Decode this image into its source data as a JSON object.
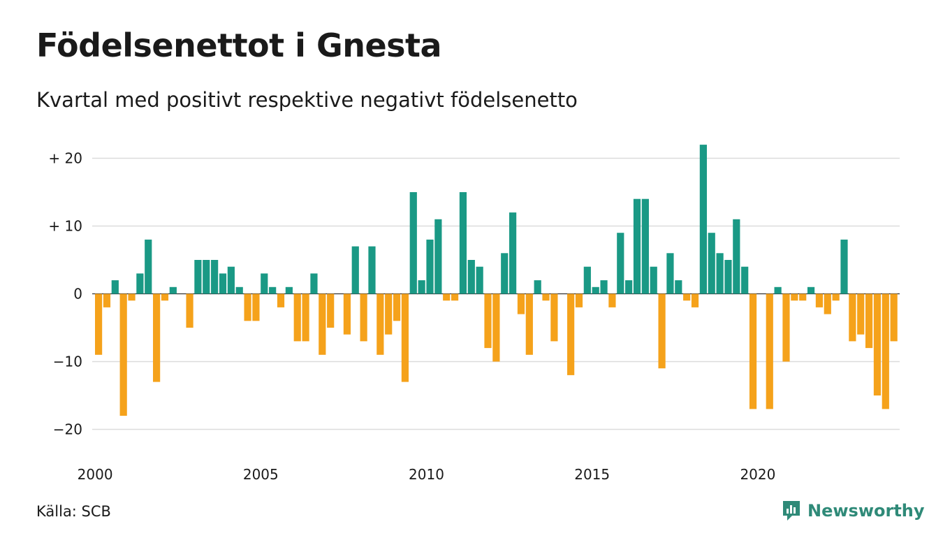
{
  "title": "Födelsenettot i Gnesta",
  "subtitle": "Kvartal med positivt respektive negativt födelsenetto",
  "source": "Källa: SCB",
  "brand": "Newsworthy",
  "colors": {
    "positive": "#1a9985",
    "negative": "#f5a21b",
    "grid": "#dcdcdc",
    "brand": "#2f8a78"
  },
  "chart_data": {
    "type": "bar",
    "title": "Födelsenettot i Gnesta",
    "subtitle": "Kvartal med positivt respektive negativt födelsenetto",
    "x_start": "2000 Q1",
    "x_ticks": [
      "2000",
      "2005",
      "2010",
      "2015",
      "2020"
    ],
    "y_ticks": [
      "−20",
      "−10",
      "0",
      "+ 10",
      "+ 20"
    ],
    "y_tick_values": [
      -20,
      -10,
      0,
      10,
      20
    ],
    "ylim": [
      -24,
      22
    ],
    "grid": true,
    "legend": "none",
    "values": [
      -9,
      -2,
      2,
      -18,
      -1,
      3,
      8,
      -13,
      -1,
      1,
      0,
      -5,
      5,
      5,
      5,
      3,
      4,
      1,
      -4,
      -4,
      3,
      1,
      -2,
      1,
      -7,
      -7,
      3,
      -9,
      -5,
      0,
      -6,
      7,
      -7,
      7,
      -9,
      -6,
      -4,
      -13,
      15,
      2,
      8,
      11,
      -1,
      -1,
      15,
      5,
      4,
      -8,
      -10,
      6,
      12,
      -3,
      -9,
      2,
      -1,
      -7,
      0,
      -12,
      -2,
      4,
      1,
      2,
      -2,
      9,
      2,
      14,
      14,
      4,
      -11,
      6,
      2,
      -1,
      -2,
      22,
      9,
      6,
      5,
      11,
      4,
      -17,
      0,
      -17,
      1,
      -10,
      -1,
      -1,
      1,
      -2,
      -3,
      -1,
      8,
      -7,
      -6,
      -8,
      -15,
      -17,
      -7
    ]
  }
}
